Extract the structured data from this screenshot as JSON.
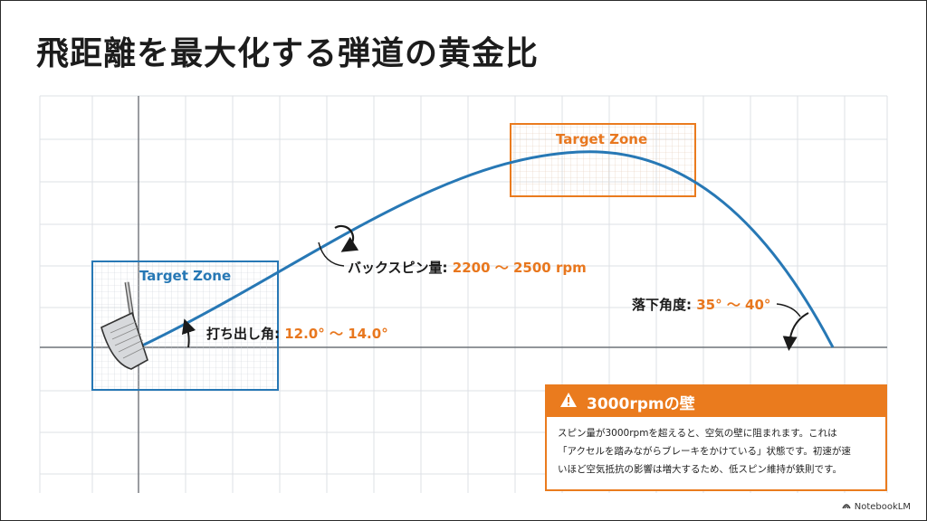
{
  "title": "飛距離を最大化する弾道の黄金比",
  "zones": {
    "launch_label": "Target Zone",
    "apex_label": "Target Zone"
  },
  "launch_angle": {
    "label": "打ち出し角:",
    "value": "12.0° ～ 14.0°"
  },
  "backspin": {
    "label": "バックスピン量:",
    "value": "2200 ～ 2500 rpm"
  },
  "landing_angle": {
    "label": "落下角度:",
    "value": "35° ～ 40°"
  },
  "warning": {
    "title": "3000rpmの壁",
    "icon": "warning-icon",
    "lines": [
      "スピン量が3000rpmを超えると、空気の壁に阻まれます。これは",
      "「アクセルを踏みながらブレーキをかけている」状態です。初速が速",
      "いほど空気抵抗の影響は増大するため、低スピン維持が鉄則です。"
    ]
  },
  "branding": "NotebookLM",
  "colors": {
    "trajectory": "#2778b5",
    "accent": "#ea7b1e",
    "grid": "#d9dde2"
  }
}
